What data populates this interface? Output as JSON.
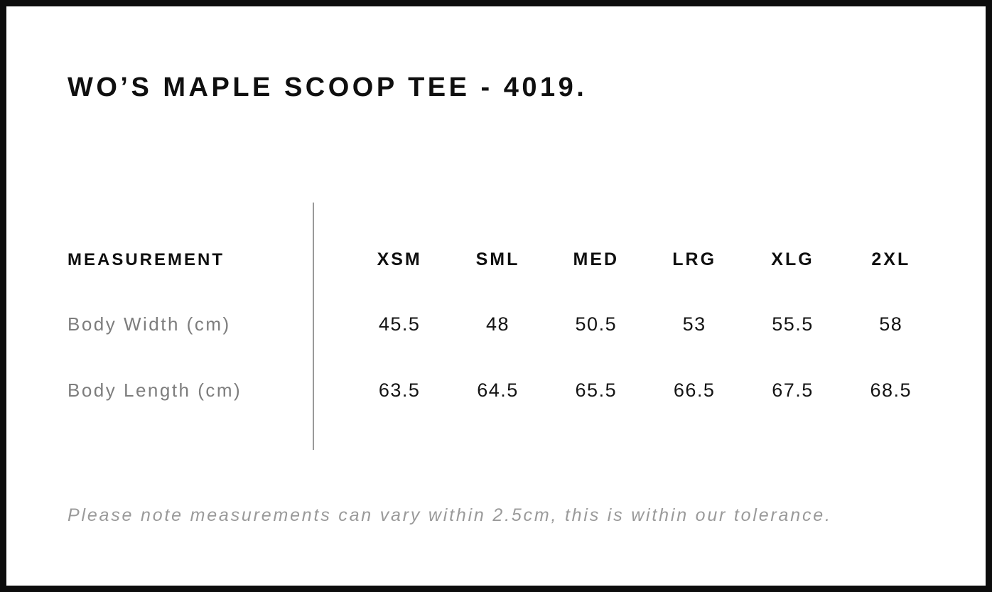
{
  "title": "WO’S MAPLE SCOOP TEE - 4019.",
  "table": {
    "label_header": "MEASUREMENT",
    "size_headers": [
      "XSM",
      "SML",
      "MED",
      "LRG",
      "XLG",
      "2XL"
    ],
    "rows": [
      {
        "label": "Body Width (cm)",
        "values": [
          "45.5",
          "48",
          "50.5",
          "53",
          "55.5",
          "58"
        ]
      },
      {
        "label": "Body Length (cm)",
        "values": [
          "63.5",
          "64.5",
          "65.5",
          "66.5",
          "67.5",
          "68.5"
        ]
      }
    ]
  },
  "note": "Please note measurements can vary within 2.5cm, this is within our tolerance.",
  "colors": {
    "frame_border": "#0d0d0d",
    "heading_text": "#0f0f0f",
    "row_label_gray": "#7d7d7d",
    "value_text": "#141414",
    "divider_gray": "#9a9a9a",
    "note_gray": "#9a9a9a",
    "background": "#ffffff"
  }
}
